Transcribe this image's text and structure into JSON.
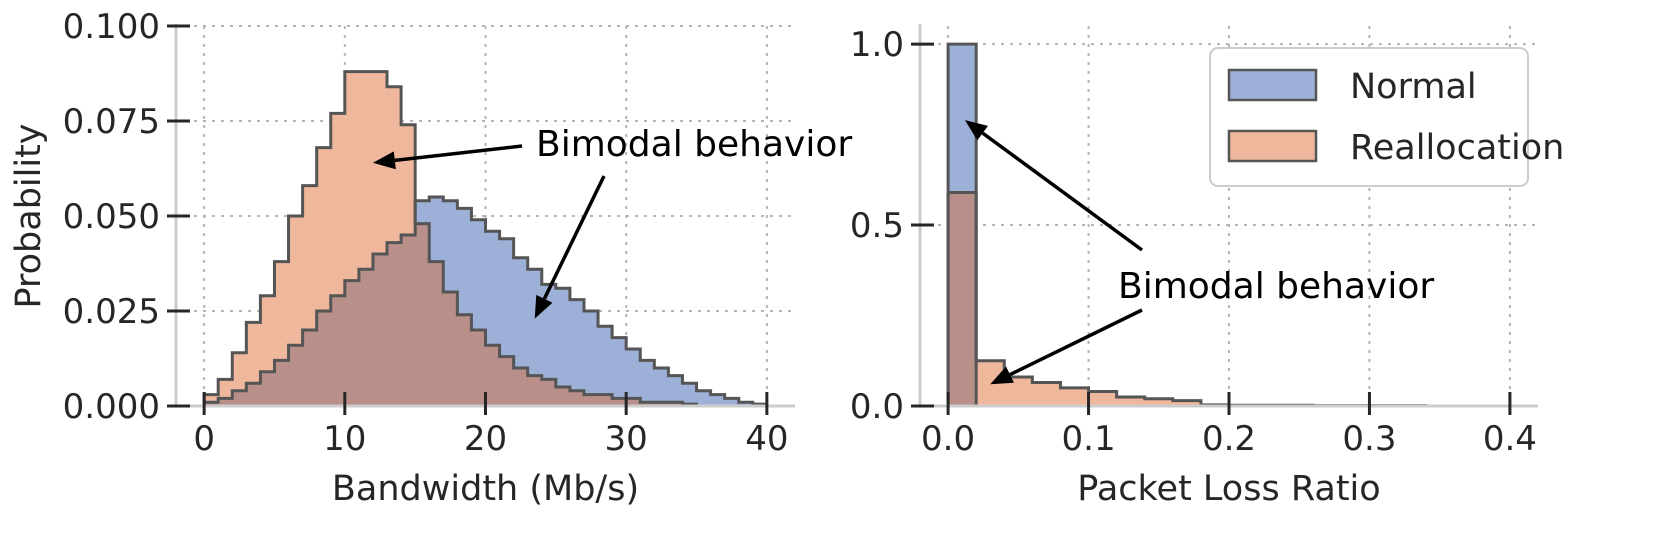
{
  "colors": {
    "normal": "#9db0d7",
    "realloc": "#efb89c",
    "edge": "#555555",
    "overlap": "#b88f89"
  },
  "chart_data": [
    {
      "type": "histogram",
      "xlabel": "Bandwidth (Mb/s)",
      "ylabel": "Probability",
      "xlim": [
        -2,
        42
      ],
      "ylim": [
        0,
        0.1
      ],
      "xticks": [
        0,
        10,
        20,
        30,
        40
      ],
      "xtick_labels": [
        "0",
        "10",
        "20",
        "30",
        "40"
      ],
      "yticks": [
        0,
        0.025,
        0.05,
        0.075,
        0.1
      ],
      "ytick_labels": [
        "0.000",
        "0.025",
        "0.050",
        "0.075",
        "0.100"
      ],
      "bin_edges": [
        0,
        1,
        2,
        3,
        4,
        5,
        6,
        7,
        8,
        9,
        10,
        11,
        12,
        13,
        14,
        15,
        16,
        17,
        18,
        19,
        20,
        21,
        22,
        23,
        24,
        25,
        26,
        27,
        28,
        29,
        30,
        31,
        32,
        33,
        34,
        35,
        36,
        37,
        38,
        39,
        40
      ],
      "series": [
        {
          "name": "Normal",
          "values": [
            0.001,
            0.002,
            0.004,
            0.006,
            0.009,
            0.012,
            0.016,
            0.02,
            0.025,
            0.029,
            0.033,
            0.036,
            0.04,
            0.043,
            0.045,
            0.054,
            0.055,
            0.054,
            0.052,
            0.049,
            0.046,
            0.044,
            0.039,
            0.036,
            0.032,
            0.031,
            0.028,
            0.025,
            0.021,
            0.018,
            0.015,
            0.012,
            0.01,
            0.008,
            0.006,
            0.004,
            0.003,
            0.002,
            0.001,
            0.0005
          ]
        },
        {
          "name": "Reallocation",
          "values": [
            0.003,
            0.007,
            0.014,
            0.022,
            0.029,
            0.038,
            0.05,
            0.058,
            0.068,
            0.077,
            0.088,
            0.088,
            0.088,
            0.084,
            0.074,
            0.048,
            0.038,
            0.03,
            0.024,
            0.02,
            0.016,
            0.013,
            0.01,
            0.008,
            0.007,
            0.005,
            0.004,
            0.003,
            0.003,
            0.002,
            0.002,
            0.001,
            0.001,
            0.001,
            0.0005,
            0,
            0,
            0,
            0,
            0
          ]
        }
      ],
      "annotation": {
        "text": "Bimodal behavior",
        "arrow_targets": [
          [
            12,
            0.064
          ],
          [
            23.5,
            0.023
          ]
        ]
      }
    },
    {
      "type": "histogram",
      "xlabel": "Packet Loss Ratio",
      "ylabel": "",
      "xlim": [
        -0.02,
        0.42
      ],
      "ylim": [
        0,
        1.05
      ],
      "xticks": [
        0.0,
        0.1,
        0.2,
        0.3,
        0.4
      ],
      "xtick_labels": [
        "0.0",
        "0.1",
        "0.2",
        "0.3",
        "0.4"
      ],
      "yticks": [
        0.0,
        0.5,
        1.0
      ],
      "ytick_labels": [
        "0.0",
        "0.5",
        "1.0"
      ],
      "bin_edges": [
        0,
        0.02,
        0.04,
        0.06,
        0.08,
        0.1,
        0.12,
        0.14,
        0.16,
        0.18,
        0.2,
        0.22,
        0.24,
        0.26,
        0.28,
        0.3,
        0.32,
        0.34
      ],
      "series": [
        {
          "name": "Normal",
          "values": [
            1.0,
            0,
            0,
            0,
            0,
            0,
            0,
            0,
            0,
            0,
            0,
            0,
            0,
            0,
            0,
            0,
            0
          ]
        },
        {
          "name": "Reallocation",
          "values": [
            0.59,
            0.125,
            0.08,
            0.065,
            0.05,
            0.04,
            0.025,
            0.02,
            0.015,
            0.003,
            0.002,
            0.002,
            0.002,
            0.001,
            0.001,
            0.001,
            0.001
          ]
        }
      ],
      "annotation": {
        "text": "Bimodal behavior",
        "arrow_targets": [
          [
            0.012,
            0.79
          ],
          [
            0.03,
            0.06
          ]
        ]
      },
      "legend": {
        "location": "top-right",
        "entries": [
          "Normal",
          "Reallocation"
        ]
      }
    }
  ]
}
